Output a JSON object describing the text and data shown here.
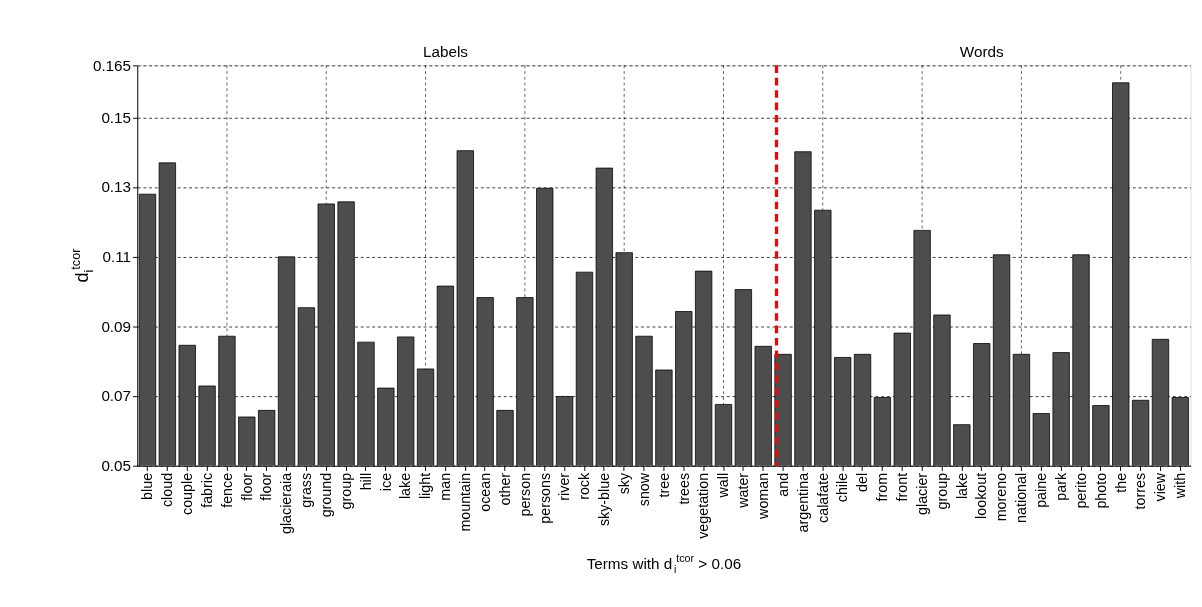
{
  "chart_data": {
    "type": "bar",
    "xlabel": "Terms with d$_{i}$$^{tcor}$ > 0.06",
    "ylabel": "d$_{i}$$^{tcor}$",
    "categories": [
      "blue",
      "cloud",
      "couple",
      "fabric",
      "fence",
      "floor",
      "floor",
      "glacieraia",
      "grass",
      "ground",
      "group",
      "hill",
      "ice",
      "lake",
      "light",
      "man",
      "mountain",
      "ocean",
      "other",
      "person",
      "persons",
      "river",
      "rock",
      "sky-blue",
      "sky",
      "snow",
      "tree",
      "trees",
      "vegetation",
      "wall",
      "water",
      "woman",
      "and",
      "argentina",
      "calafate",
      "chile",
      "del",
      "from",
      "front",
      "glacier",
      "group",
      "lake",
      "lookout",
      "moreno",
      "national",
      "paine",
      "park",
      "perito",
      "photo",
      "the",
      "torres",
      "view",
      "with"
    ],
    "values": [
      0.128,
      0.137,
      0.0846,
      0.0729,
      0.0872,
      0.064,
      0.0659,
      0.11,
      0.0954,
      0.1252,
      0.1258,
      0.0855,
      0.0723,
      0.087,
      0.0778,
      0.1016,
      0.1405,
      0.0983,
      0.0659,
      0.0983,
      0.1297,
      0.0699,
      0.1056,
      0.1355,
      0.1112,
      0.0872,
      0.0775,
      0.0943,
      0.1059,
      0.0676,
      0.1006,
      0.0843,
      0.082,
      0.1402,
      0.1234,
      0.0811,
      0.082,
      0.0696,
      0.0881,
      0.1176,
      0.0933,
      0.0618,
      0.0851,
      0.1106,
      0.082,
      0.065,
      0.0825,
      0.1106,
      0.0673,
      0.16,
      0.0688,
      0.0863,
      0.0696
    ],
    "color": "#4d4d4d",
    "ylim": [
      0.05,
      0.165
    ],
    "yticks": [
      0.05,
      0.07,
      0.09,
      0.11,
      0.13,
      0.15,
      0.165
    ],
    "grid": true,
    "ref_lines": [
      {
        "axis": "x",
        "value": "and",
        "color": "#ff0000",
        "line_style": "dashed"
      }
    ],
    "annotations": [
      "Labels",
      "Words"
    ]
  }
}
